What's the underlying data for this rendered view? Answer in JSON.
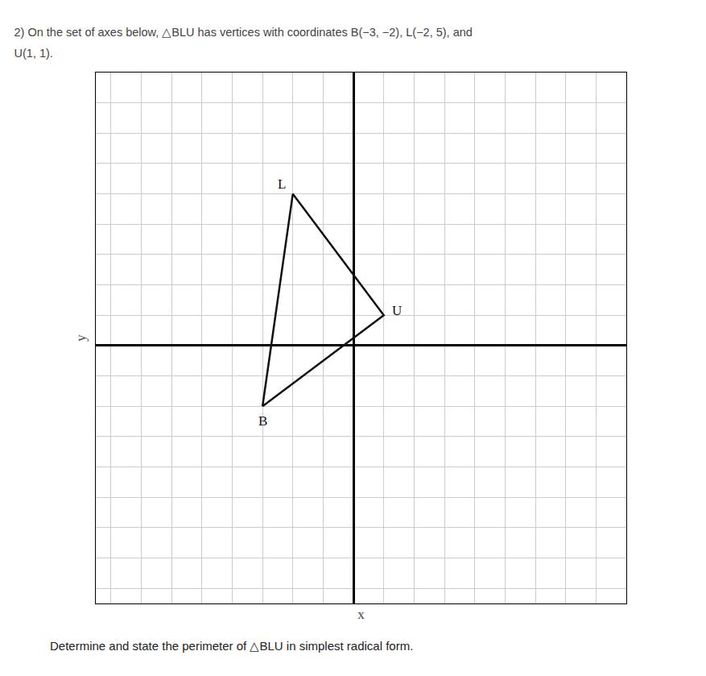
{
  "chart_data": {
    "type": "line",
    "title": "2) On the set of axes below, △BLU has vertices with coordinates B(−3, −2), L(−2, 5), and",
    "subtitle": "U(1, 1).",
    "xlabel": "x",
    "ylabel": "y",
    "x": [
      -3,
      -2,
      1,
      -3
    ],
    "values": [
      -2,
      5,
      1,
      -2
    ],
    "color": "#111111",
    "marker": "none",
    "xlim": [
      -8.5,
      9
    ],
    "ylim": [
      -8.5,
      9
    ],
    "xticks": [
      -8,
      -7,
      -6,
      -5,
      -4,
      -3,
      -2,
      -1,
      0,
      1,
      2,
      3,
      4,
      5,
      6,
      7,
      8
    ],
    "yticks": [
      -8,
      -7,
      -6,
      -5,
      -4,
      -3,
      -2,
      -1,
      0,
      1,
      2,
      3,
      4,
      5,
      6,
      7,
      8
    ],
    "grid": true,
    "tick_labels": false,
    "annotations": [
      {
        "text": "B",
        "x": -3,
        "y": -2
      },
      {
        "text": "L",
        "x": -2,
        "y": 5
      },
      {
        "text": "U",
        "x": 1,
        "y": 1
      },
      {
        "text": "Determine and state the perimeter of △BLU in simplest radical form."
      }
    ]
  }
}
